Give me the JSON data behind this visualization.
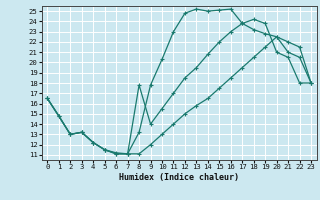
{
  "title": "",
  "xlabel": "Humidex (Indice chaleur)",
  "bg_color": "#cce8f0",
  "grid_color": "#ffffff",
  "line_color": "#1a7a6e",
  "xlim": [
    -0.5,
    23.5
  ],
  "ylim": [
    10.5,
    25.5
  ],
  "xticks": [
    0,
    1,
    2,
    3,
    4,
    5,
    6,
    7,
    8,
    9,
    10,
    11,
    12,
    13,
    14,
    15,
    16,
    17,
    18,
    19,
    20,
    21,
    22,
    23
  ],
  "yticks": [
    11,
    12,
    13,
    14,
    15,
    16,
    17,
    18,
    19,
    20,
    21,
    22,
    23,
    24,
    25
  ],
  "line1_x": [
    0,
    1,
    2,
    3,
    4,
    5,
    6,
    7,
    8,
    9,
    10,
    11,
    12,
    13,
    14,
    15,
    16,
    17,
    18,
    19,
    20,
    21,
    22,
    23
  ],
  "line1_y": [
    16.5,
    14.8,
    13.0,
    13.2,
    12.2,
    11.5,
    11.1,
    11.1,
    13.2,
    17.8,
    20.3,
    23.0,
    24.8,
    25.2,
    25.0,
    25.1,
    25.2,
    23.8,
    24.2,
    23.8,
    21.0,
    20.5,
    18.0,
    18.0
  ],
  "line2_x": [
    0,
    2,
    3,
    4,
    5,
    6,
    7,
    8,
    9,
    10,
    11,
    12,
    13,
    14,
    15,
    16,
    17,
    18,
    19,
    20,
    21,
    22,
    23
  ],
  "line2_y": [
    16.5,
    13.0,
    13.2,
    12.2,
    11.5,
    11.2,
    11.1,
    17.8,
    14.0,
    15.5,
    17.0,
    18.5,
    19.5,
    20.8,
    22.0,
    23.0,
    23.8,
    23.2,
    22.8,
    22.5,
    21.0,
    20.5,
    18.0
  ],
  "line3_x": [
    0,
    1,
    2,
    3,
    4,
    5,
    6,
    7,
    8,
    9,
    10,
    11,
    12,
    13,
    14,
    15,
    16,
    17,
    18,
    19,
    20,
    21,
    22,
    23
  ],
  "line3_y": [
    16.5,
    14.8,
    13.0,
    13.2,
    12.2,
    11.5,
    11.1,
    11.1,
    11.1,
    12.0,
    13.0,
    14.0,
    15.0,
    15.8,
    16.5,
    17.5,
    18.5,
    19.5,
    20.5,
    21.5,
    22.5,
    22.0,
    21.5,
    18.0
  ],
  "xlabel_fontsize": 6.0,
  "tick_fontsize": 5.2
}
